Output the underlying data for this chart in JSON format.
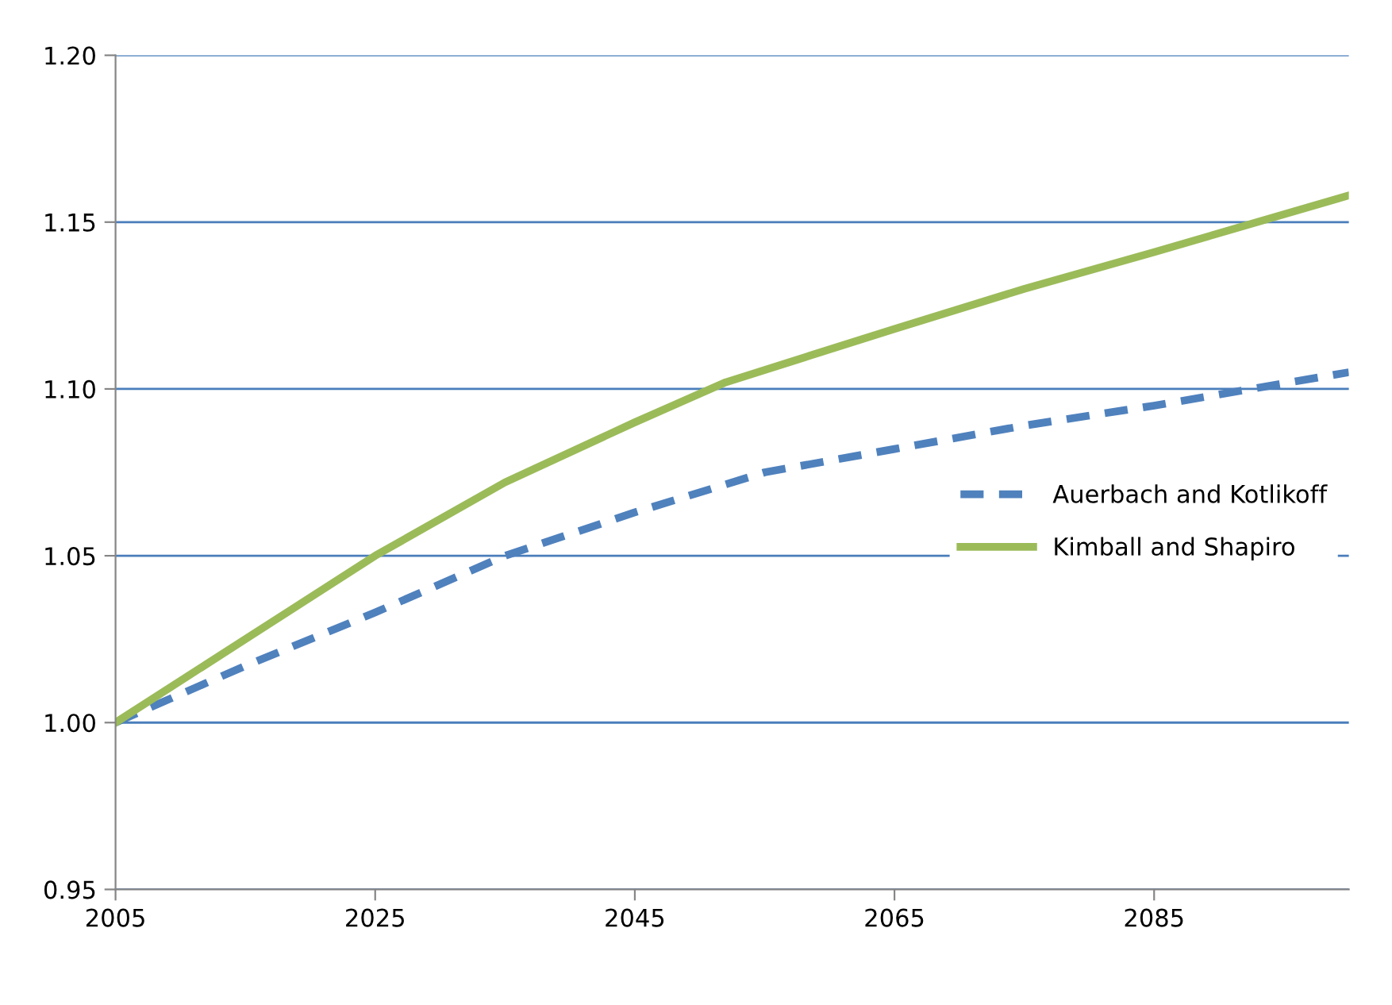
{
  "chart_data": {
    "type": "line",
    "xlim": [
      2005,
      2100
    ],
    "xticks": [
      2005,
      2025,
      2045,
      2065,
      2085
    ],
    "ylim": [
      0.95,
      1.2
    ],
    "yticks": [
      {
        "value": 0.95,
        "label": "0.95"
      },
      {
        "value": 1.0,
        "label": "1.00"
      },
      {
        "value": 1.05,
        "label": "1.05"
      },
      {
        "value": 1.1,
        "label": "1.10"
      },
      {
        "value": 1.15,
        "label": "1.15"
      },
      {
        "value": 1.2,
        "label": "1.20"
      }
    ],
    "grid": "y",
    "legend": "right",
    "marker": "none",
    "series": [
      {
        "name": "Auerbach and Kotlikoff",
        "color": "#4f81bd",
        "line_style": "dashed",
        "x": [
          2005,
          2015,
          2025,
          2035,
          2045,
          2055,
          2065,
          2075,
          2085,
          2100
        ],
        "values": [
          1.0,
          1.017,
          1.033,
          1.05,
          1.063,
          1.075,
          1.082,
          1.089,
          1.095,
          1.105
        ]
      },
      {
        "name": "Kimball and Shapiro",
        "color": "#9bbb59",
        "line_style": "solid",
        "x": [
          2005,
          2015,
          2025,
          2035,
          2045,
          2052,
          2065,
          2075,
          2085,
          2100
        ],
        "values": [
          1.0,
          1.025,
          1.05,
          1.072,
          1.09,
          1.102,
          1.118,
          1.13,
          1.141,
          1.158
        ]
      }
    ]
  }
}
